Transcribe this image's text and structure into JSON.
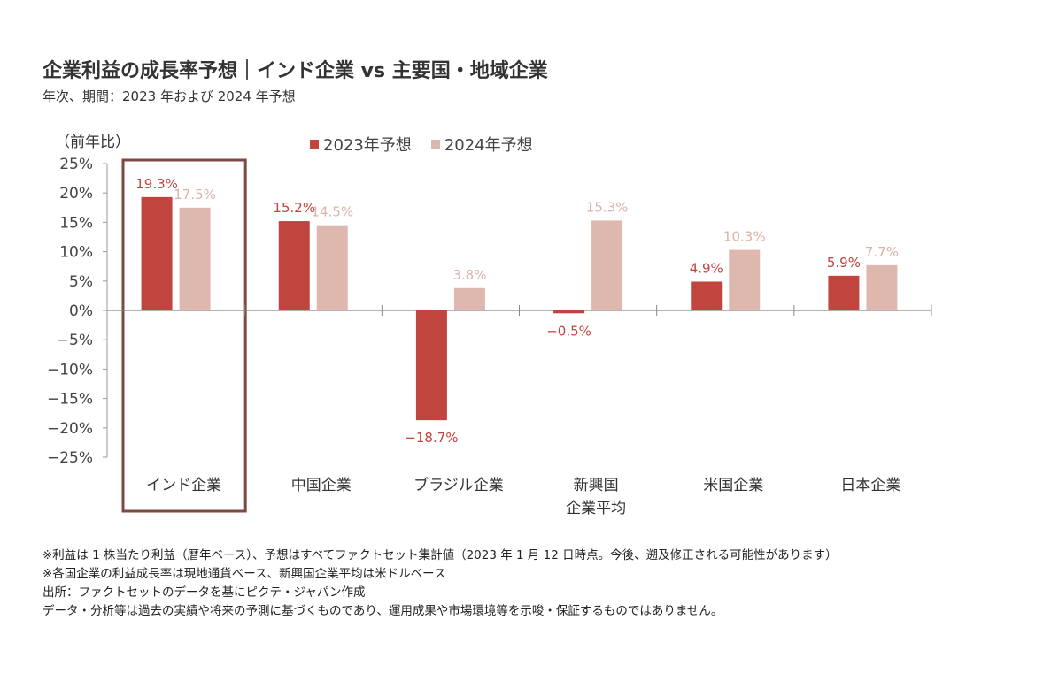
{
  "title": "企業利益の成長率予想｜インド企業 vs 主要国・地域企業",
  "subtitle": "年次、期間：2023 年および 2024 年予想",
  "unit_label": "（前年比）",
  "chart_data": {
    "type": "bar",
    "title": "企業利益の成長率予想｜インド企業 vs 主要国・地域企業",
    "subtitle": "年次、期間：2023 年および 2024 年予想",
    "xlabel": "",
    "ylabel": "（前年比）",
    "ylim": [
      -25,
      25
    ],
    "yticks": [
      25,
      20,
      15,
      10,
      5,
      0,
      -5,
      -10,
      -15,
      -20,
      -25
    ],
    "ytick_labels": [
      "25%",
      "20%",
      "15%",
      "10%",
      "5%",
      "0%",
      "−5%",
      "−10%",
      "−15%",
      "−20%",
      "−25%"
    ],
    "grid": false,
    "legend_position": "top-center",
    "categories": [
      [
        "インド企業"
      ],
      [
        "中国企業"
      ],
      [
        "ブラジル企業"
      ],
      [
        "新興国",
        "企業平均"
      ],
      [
        "米国企業"
      ],
      [
        "日本企業"
      ]
    ],
    "highlight_category_index": 0,
    "highlight_color": "#7b4a42",
    "series": [
      {
        "name": "2023年予想",
        "color": "#c0453e",
        "values": [
          19.3,
          15.2,
          -18.7,
          -0.5,
          4.9,
          5.9
        ],
        "labels": [
          "19.3%",
          "15.2%",
          "−18.7%",
          "−0.5%",
          "4.9%",
          "5.9%"
        ]
      },
      {
        "name": "2024年予想",
        "color": "#deb8ae",
        "values": [
          17.5,
          14.5,
          3.8,
          15.3,
          10.3,
          7.7
        ],
        "labels": [
          "17.5%",
          "14.5%",
          "3.8%",
          "15.3%",
          "10.3%",
          "7.7%"
        ]
      }
    ],
    "label_colors": {
      "2023年予想": "#c0453e",
      "2024年予想": "#dcb3a9"
    }
  },
  "legend": [
    {
      "label": "2023年予想",
      "color": "#c0453e"
    },
    {
      "label": "2024年予想",
      "color": "#deb8ae"
    }
  ],
  "notes": [
    "※利益は 1 株当たり利益（暦年ベース）、予想はすべてファクトセット集計値（2023 年 1 月 12 日時点。今後、遡及修正される可能性があります）",
    "※各国企業の利益成長率は現地通貨ベース、新興国企業平均は米ドルベース",
    "出所：ファクトセットのデータを基にピクテ・ジャパン作成",
    "データ・分析等は過去の実績や将来の予測に基づくものであり、運用成果や市場環境等を示唆・保証するものではありません。"
  ]
}
